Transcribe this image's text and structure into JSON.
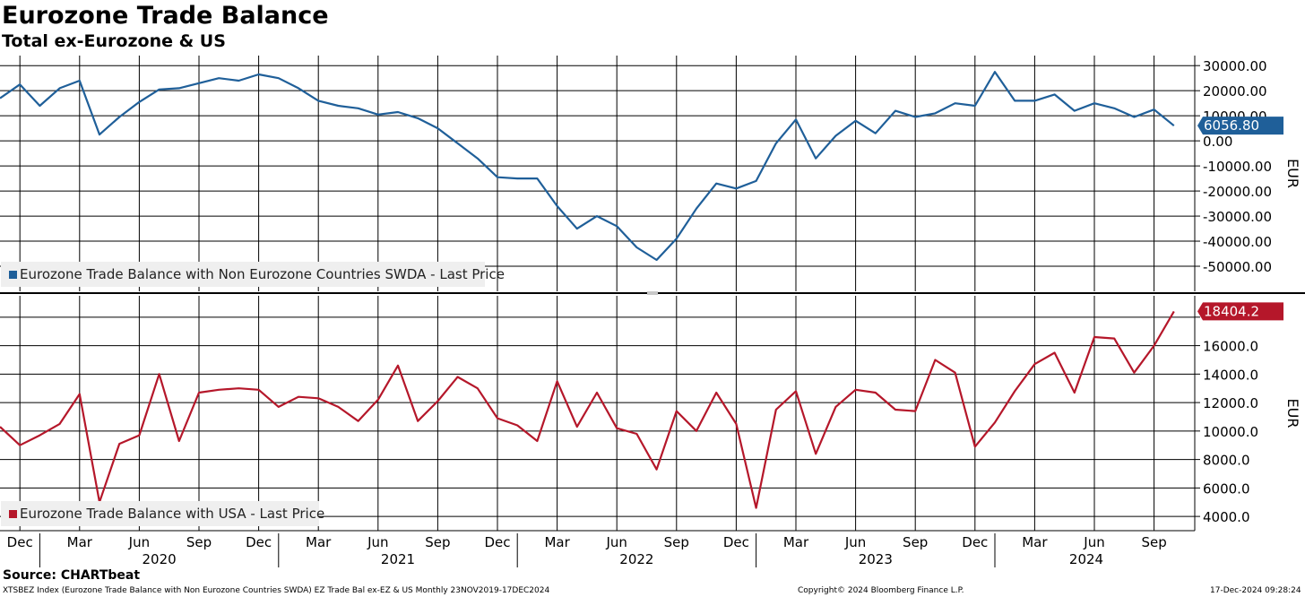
{
  "header": {
    "title": "Eurozone Trade Balance",
    "subtitle": "Total ex-Eurozone & US"
  },
  "footer": {
    "source": "Source: CHARTbeat",
    "ticker": "XTSBEZ Index (Eurozone Trade Balance with Non Eurozone Countries SWDA) EZ Trade Bal ex-EZ & US  Monthly 23NOV2019-17DEC2024",
    "copyright": "Copyright© 2024 Bloomberg Finance L.P.",
    "timestamp": "17-Dec-2024 09:28:24"
  },
  "colors": {
    "series1": "#1f5f99",
    "series2": "#b5172a",
    "grid": "#000000"
  },
  "chart_data": [
    {
      "type": "line",
      "title": "Eurozone Trade Balance with Non Eurozone Countries",
      "legend": "Eurozone Trade Balance with Non Eurozone Countries SWDA - Last Price",
      "legend_position": "bottom-left",
      "ylabel": "EUR",
      "ylim": [
        -60000,
        34000
      ],
      "yticks": [
        30000,
        20000,
        10000,
        0,
        -10000,
        -20000,
        -30000,
        -40000,
        -50000
      ],
      "ytick_labels": [
        "30000.00",
        "20000.00",
        "10000.00",
        "0.00",
        "-10000.00",
        "-20000.00",
        "-30000.00",
        "-40000.00",
        "-50000.00"
      ],
      "last_value_label": "6056.80",
      "last_value": 6056.8,
      "color": "#1f5f99",
      "x": [
        "2019-11",
        "2019-12",
        "2020-01",
        "2020-02",
        "2020-03",
        "2020-04",
        "2020-05",
        "2020-06",
        "2020-07",
        "2020-08",
        "2020-09",
        "2020-10",
        "2020-11",
        "2020-12",
        "2021-01",
        "2021-02",
        "2021-03",
        "2021-04",
        "2021-05",
        "2021-06",
        "2021-07",
        "2021-08",
        "2021-09",
        "2021-10",
        "2021-11",
        "2021-12",
        "2022-01",
        "2022-02",
        "2022-03",
        "2022-04",
        "2022-05",
        "2022-06",
        "2022-07",
        "2022-08",
        "2022-09",
        "2022-10",
        "2022-11",
        "2022-12",
        "2023-01",
        "2023-02",
        "2023-03",
        "2023-04",
        "2023-05",
        "2023-06",
        "2023-07",
        "2023-08",
        "2023-09",
        "2023-10",
        "2023-11",
        "2023-12",
        "2024-01",
        "2024-02",
        "2024-03",
        "2024-04",
        "2024-05",
        "2024-06",
        "2024-07",
        "2024-08",
        "2024-09",
        "2024-10"
      ],
      "values": [
        17000,
        22500,
        14000,
        21000,
        24000,
        2500,
        9500,
        15500,
        20500,
        21000,
        23000,
        25000,
        24000,
        26500,
        25000,
        21000,
        16000,
        14000,
        13000,
        10500,
        11500,
        9000,
        5000,
        -1000,
        -7000,
        -14500,
        -15000,
        -15000,
        -26000,
        -35000,
        -30000,
        -34000,
        -42500,
        -47500,
        -39000,
        -27000,
        -17000,
        -19000,
        -16000,
        -1000,
        8500,
        -7000,
        2000,
        8000,
        3000,
        12000,
        9500,
        11000,
        15000,
        14000,
        27500,
        16000,
        16000,
        18500,
        12000,
        15000,
        13000,
        9500,
        12500,
        6056.8
      ]
    },
    {
      "type": "line",
      "title": "Eurozone Trade Balance with USA",
      "legend": "Eurozone Trade Balance with USA - Last Price",
      "legend_position": "bottom-left",
      "ylabel": "EUR",
      "ylim": [
        3000,
        19500
      ],
      "yticks": [
        18000,
        16000,
        14000,
        12000,
        10000,
        8000,
        6000,
        4000
      ],
      "ytick_labels": [
        "",
        "16000.0",
        "14000.0",
        "12000.0",
        "10000.0",
        "8000.0",
        "6000.0",
        "4000.0"
      ],
      "last_value_label": "18404.2",
      "last_value": 18404.2,
      "color": "#b5172a",
      "x": [
        "2019-11",
        "2019-12",
        "2020-01",
        "2020-02",
        "2020-03",
        "2020-04",
        "2020-05",
        "2020-06",
        "2020-07",
        "2020-08",
        "2020-09",
        "2020-10",
        "2020-11",
        "2020-12",
        "2021-01",
        "2021-02",
        "2021-03",
        "2021-04",
        "2021-05",
        "2021-06",
        "2021-07",
        "2021-08",
        "2021-09",
        "2021-10",
        "2021-11",
        "2021-12",
        "2022-01",
        "2022-02",
        "2022-03",
        "2022-04",
        "2022-05",
        "2022-06",
        "2022-07",
        "2022-08",
        "2022-09",
        "2022-10",
        "2022-11",
        "2022-12",
        "2023-01",
        "2023-02",
        "2023-03",
        "2023-04",
        "2023-05",
        "2023-06",
        "2023-07",
        "2023-08",
        "2023-09",
        "2023-10",
        "2023-11",
        "2023-12",
        "2024-01",
        "2024-02",
        "2024-03",
        "2024-04",
        "2024-05",
        "2024-06",
        "2024-07",
        "2024-08",
        "2024-09",
        "2024-10"
      ],
      "values": [
        10300,
        9000,
        9700,
        10500,
        12600,
        5000,
        9100,
        9700,
        14000,
        9300,
        12700,
        12900,
        13000,
        12900,
        11700,
        12400,
        12300,
        11700,
        10700,
        12200,
        14600,
        10700,
        12100,
        13800,
        13000,
        10900,
        10400,
        9300,
        13500,
        10300,
        12700,
        10200,
        9800,
        7300,
        11400,
        10000,
        12700,
        10500,
        4600,
        11500,
        12800,
        8400,
        11700,
        12900,
        12700,
        11500,
        11400,
        15000,
        14100,
        8900,
        10600,
        12800,
        14700,
        15500,
        12700,
        16600,
        16500,
        14100,
        16000,
        18404.2
      ]
    }
  ],
  "xaxis": {
    "month_labels": [
      "Dec",
      "Mar",
      "Jun",
      "Sep",
      "Dec",
      "Mar",
      "Jun",
      "Sep",
      "Dec",
      "Mar",
      "Jun",
      "Sep",
      "Dec",
      "Mar",
      "Jun",
      "Sep",
      "Dec",
      "Mar",
      "Jun",
      "Sep"
    ],
    "month_dates": [
      "2019-12",
      "2020-03",
      "2020-06",
      "2020-09",
      "2020-12",
      "2021-03",
      "2021-06",
      "2021-09",
      "2021-12",
      "2022-03",
      "2022-06",
      "2022-09",
      "2022-12",
      "2023-03",
      "2023-06",
      "2023-09",
      "2023-12",
      "2024-03",
      "2024-06",
      "2024-09"
    ],
    "year_labels": [
      "2020",
      "2021",
      "2022",
      "2023",
      "2024"
    ]
  }
}
